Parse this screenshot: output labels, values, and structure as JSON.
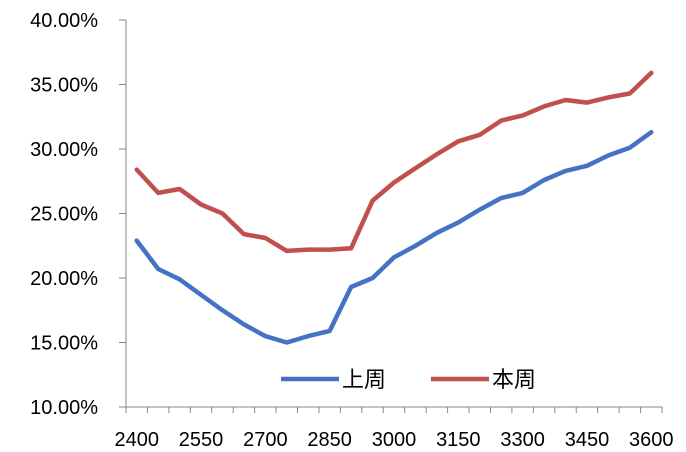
{
  "chart_data": {
    "type": "line",
    "title": "",
    "xlabel": "",
    "ylabel": "",
    "x": [
      2400,
      2450,
      2500,
      2550,
      2600,
      2650,
      2700,
      2750,
      2800,
      2850,
      2900,
      2950,
      3000,
      3050,
      3100,
      3150,
      3200,
      3250,
      3300,
      3350,
      3400,
      3450,
      3500,
      3550,
      3600
    ],
    "x_ticks": [
      "2400",
      "2550",
      "2700",
      "2850",
      "3000",
      "3150",
      "3300",
      "3450",
      "3600"
    ],
    "y_ticks": [
      "10.00%",
      "15.00%",
      "20.00%",
      "25.00%",
      "30.00%",
      "35.00%",
      "40.00%"
    ],
    "ylim": [
      10,
      40
    ],
    "y_unit": "%",
    "grid": false,
    "legend_position": "bottom-right",
    "series": [
      {
        "name": "上周",
        "color": "#4472C4",
        "values": [
          22.9,
          20.7,
          19.9,
          18.7,
          17.5,
          16.4,
          15.5,
          15.0,
          15.5,
          15.9,
          19.3,
          20.0,
          21.6,
          22.5,
          23.5,
          24.3,
          25.3,
          26.2,
          26.6,
          27.6,
          28.3,
          28.7,
          29.5,
          30.1,
          31.3
        ]
      },
      {
        "name": "本周",
        "color": "#C0504D",
        "values": [
          28.4,
          26.6,
          26.9,
          25.7,
          25.0,
          23.4,
          23.1,
          22.1,
          22.2,
          22.2,
          22.3,
          26.0,
          27.4,
          28.5,
          29.6,
          30.6,
          31.1,
          32.2,
          32.6,
          33.3,
          33.8,
          33.6,
          34.0,
          34.3,
          35.9
        ]
      }
    ]
  }
}
